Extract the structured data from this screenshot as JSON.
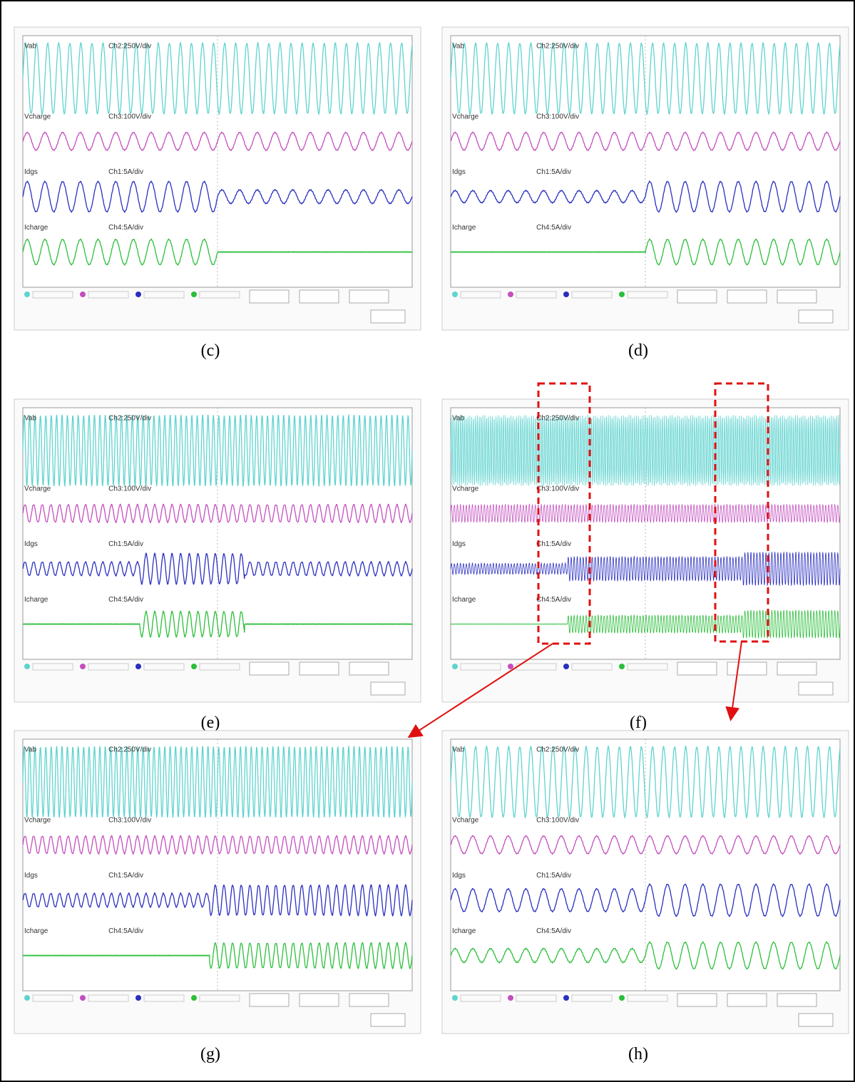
{
  "panels": [
    {
      "caption": "(c)",
      "channels": [
        {
          "name": "Vab",
          "scale": "Ch2:250V/div"
        },
        {
          "name": "Vcharge",
          "scale": "Ch3:100V/div"
        },
        {
          "name": "Idgs",
          "scale": "Ch1:5A/div"
        },
        {
          "name": "Icharge",
          "scale": "Ch4:5A/div"
        }
      ]
    },
    {
      "caption": "(d)",
      "channels": [
        {
          "name": "Vab",
          "scale": "Ch2:250V/div"
        },
        {
          "name": "Vcharge",
          "scale": "Ch3:100V/div"
        },
        {
          "name": "Idgs",
          "scale": "Ch1:5A/div"
        },
        {
          "name": "Icharge",
          "scale": "Ch4:5A/div"
        }
      ]
    },
    {
      "caption": "(e)",
      "channels": [
        {
          "name": "Vab",
          "scale": "Ch2:250V/div"
        },
        {
          "name": "Vcharge",
          "scale": "Ch3:100V/div"
        },
        {
          "name": "Idgs",
          "scale": "Ch1:5A/div"
        },
        {
          "name": "Icharge",
          "scale": "Ch4:5A/div"
        }
      ]
    },
    {
      "caption": "(f)",
      "channels": [
        {
          "name": "Vab",
          "scale": "Ch2:250V/div"
        },
        {
          "name": "Vcharge",
          "scale": "Ch3:100V/div"
        },
        {
          "name": "Idgs",
          "scale": "Ch1:5A/div"
        },
        {
          "name": "Icharge",
          "scale": "Ch4:5A/div"
        }
      ]
    },
    {
      "caption": "(g)",
      "channels": [
        {
          "name": "Vab",
          "scale": "Ch2:250V/div"
        },
        {
          "name": "Vcharge",
          "scale": "Ch3:100V/div"
        },
        {
          "name": "Idgs",
          "scale": "Ch1:5A/div"
        },
        {
          "name": "Icharge",
          "scale": "Ch4:5A/div"
        }
      ]
    },
    {
      "caption": "(h)",
      "channels": [
        {
          "name": "Vab",
          "scale": "Ch2:250V/div"
        },
        {
          "name": "Vcharge",
          "scale": "Ch3:100V/div"
        },
        {
          "name": "Idgs",
          "scale": "Ch1:5A/div"
        },
        {
          "name": "Icharge",
          "scale": "Ch4:5A/div"
        }
      ]
    }
  ]
}
